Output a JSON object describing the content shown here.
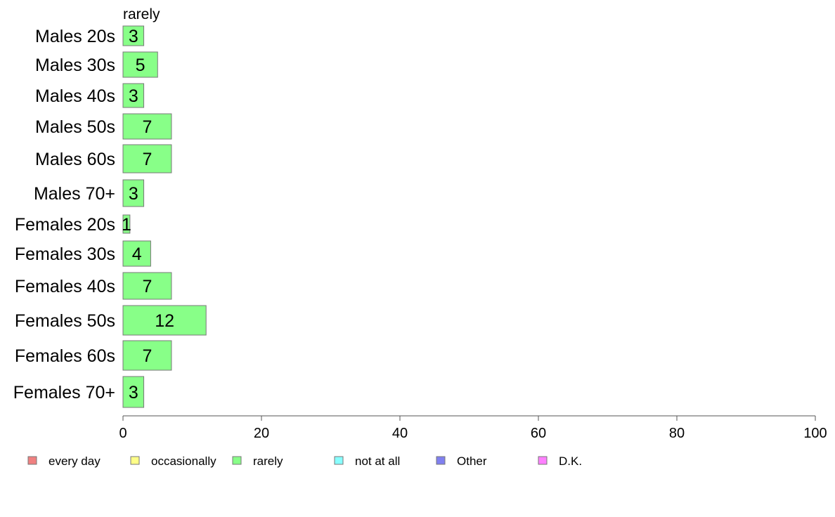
{
  "chart_data": {
    "type": "bar",
    "orientation": "horizontal",
    "stacked": true,
    "series_header": "rarely",
    "categories": [
      "Males 20s",
      "Males 30s",
      "Males 40s",
      "Males 50s",
      "Males 60s",
      "Males 70+",
      "Females 20s",
      "Females 30s",
      "Females 40s",
      "Females 50s",
      "Females 60s",
      "Females 70+"
    ],
    "series": [
      {
        "name": "rarely",
        "color": "#88ff88",
        "values": [
          3,
          5,
          3,
          7,
          7,
          3,
          1,
          4,
          7,
          12,
          7,
          3
        ]
      }
    ],
    "xlim": [
      0,
      100
    ],
    "xticks": [
      "0",
      "20",
      "40",
      "60",
      "80",
      "100"
    ],
    "legend": [
      {
        "label": "every day",
        "color": "#f08080"
      },
      {
        "label": "occasionally",
        "color": "#ffff88"
      },
      {
        "label": "rarely",
        "color": "#88ff88"
      },
      {
        "label": "not at all",
        "color": "#88ffff"
      },
      {
        "label": "Other",
        "color": "#8080f0"
      },
      {
        "label": "D.K.",
        "color": "#ff80ff"
      }
    ],
    "legend_position": "bottom",
    "grid": false
  }
}
